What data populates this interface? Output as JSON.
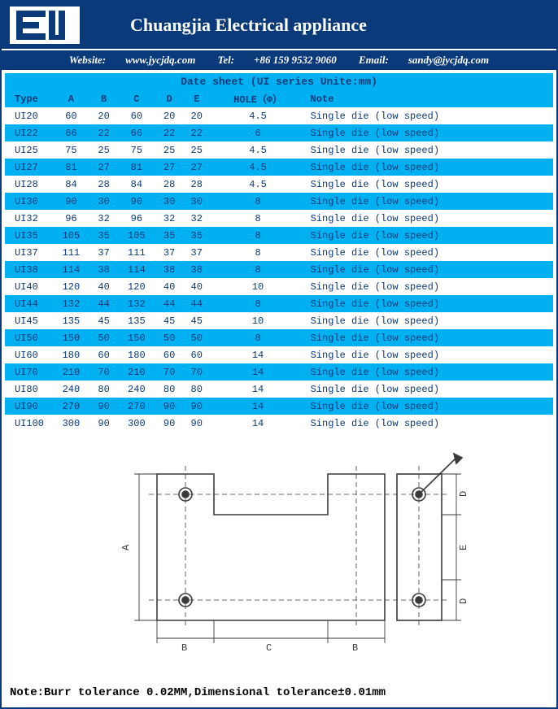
{
  "header": {
    "company": "Chuangjia Electrical appliance",
    "website_label": "Website:",
    "website": "www.jycjdq.com",
    "tel_label": "Tel:",
    "tel": "+86 159 9532 9060",
    "email_label": "Email:",
    "email": "sandy@jycjdq.com"
  },
  "sheet": {
    "title": "Date sheet    (UI series Unite:mm)",
    "columns": [
      "Type",
      "A",
      "B",
      "C",
      "D",
      "E",
      "HOLE（Φ）",
      "Note"
    ],
    "rows": [
      [
        "UI20",
        "60",
        "20",
        "60",
        "20",
        "20",
        "4.5",
        "Single die (low speed)"
      ],
      [
        "UI22",
        "66",
        "22",
        "66",
        "22",
        "22",
        "6",
        "Single die (low speed)"
      ],
      [
        "UI25",
        "75",
        "25",
        "75",
        "25",
        "25",
        "4.5",
        "Single die (low speed)"
      ],
      [
        "UI27",
        "81",
        "27",
        "81",
        "27",
        "27",
        "4.5",
        "Single die (low speed)"
      ],
      [
        "UI28",
        "84",
        "28",
        "84",
        "28",
        "28",
        "4.5",
        "Single die (low speed)"
      ],
      [
        "UI30",
        "90",
        "30",
        "90",
        "30",
        "30",
        "8",
        "Single die (low speed)"
      ],
      [
        "UI32",
        "96",
        "32",
        "96",
        "32",
        "32",
        "8",
        "Single die (low speed)"
      ],
      [
        "UI35",
        "105",
        "35",
        "105",
        "35",
        "35",
        "8",
        "Single die (low speed)"
      ],
      [
        "UI37",
        "111",
        "37",
        "111",
        "37",
        "37",
        "8",
        "Single die (low speed)"
      ],
      [
        "UI38",
        "114",
        "38",
        "114",
        "38",
        "38",
        "8",
        "Single die (low speed)"
      ],
      [
        "UI40",
        "120",
        "40",
        "120",
        "40",
        "40",
        "10",
        "Single die (low speed)"
      ],
      [
        "UI44",
        "132",
        "44",
        "132",
        "44",
        "44",
        "8",
        "Single die (low speed)"
      ],
      [
        "UI45",
        "135",
        "45",
        "135",
        "45",
        "45",
        "10",
        "Single die (low speed)"
      ],
      [
        "UI50",
        "150",
        "50",
        "150",
        "50",
        "50",
        "8",
        "Single die (low speed)"
      ],
      [
        "UI60",
        "180",
        "60",
        "180",
        "60",
        "60",
        "14",
        "Single die (low speed)"
      ],
      [
        "UI70",
        "210",
        "70",
        "210",
        "70",
        "70",
        "14",
        "Single die (low speed)"
      ],
      [
        "UI80",
        "240",
        "80",
        "240",
        "80",
        "80",
        "14",
        "Single die (low speed)"
      ],
      [
        "UI90",
        "270",
        "90",
        "270",
        "90",
        "90",
        "14",
        "Single die (low speed)"
      ],
      [
        "UI100",
        "300",
        "90",
        "300",
        "90",
        "90",
        "14",
        "Single die (low speed)"
      ]
    ]
  },
  "diagram": {
    "labels": {
      "A": "A",
      "B": "B",
      "C": "C",
      "D": "D",
      "E": "E"
    },
    "colors": {
      "line": "#3a3a3a",
      "hole": "#3a3a3a",
      "dim": "#3a3a3a"
    }
  },
  "footer": {
    "note": "Note:Burr tolerance 0.02MM,Dimensional tolerance±0.01mm"
  },
  "style": {
    "header_bg": "#0a3a7a",
    "band_bg": "#00b0f0",
    "text_blue": "#0a3a7a",
    "alt_bg": "#ffffff"
  }
}
